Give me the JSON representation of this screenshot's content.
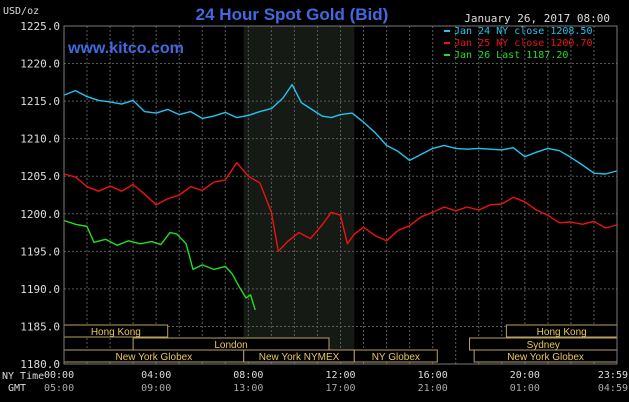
{
  "chart_data": {
    "type": "line",
    "title": "24 Hour Spot Gold (Bid)",
    "website": "www.kitco.com",
    "date": "January 26, 2017 08:00",
    "ylabel": "USD/oz",
    "ylim": [
      1180.0,
      1225.0
    ],
    "yticks": [
      "1225.0",
      "1220.0",
      "1215.0",
      "1210.0",
      "1205.0",
      "1200.0",
      "1195.0",
      "1190.0",
      "1185.0",
      "1180.0"
    ],
    "xlim": [
      0,
      24
    ],
    "xticks": [
      {
        "ny": "00:00",
        "gmt": "05:00",
        "h": 0
      },
      {
        "ny": "04:00",
        "gmt": "09:00",
        "h": 4
      },
      {
        "ny": "08:00",
        "gmt": "13:00",
        "h": 8
      },
      {
        "ny": "12:00",
        "gmt": "17:00",
        "h": 12
      },
      {
        "ny": "16:00",
        "gmt": "21:00",
        "h": 16
      },
      {
        "ny": "20:00",
        "gmt": "01:00",
        "h": 20
      },
      {
        "ny": "23:59",
        "gmt": "04:59",
        "h": 23.98
      }
    ],
    "ny_time_label": "NY Time",
    "gmt_label": "GMT",
    "grid": true,
    "shaded_range": [
      7.8,
      12.6
    ],
    "legend_position": "top-right",
    "series": [
      {
        "name": "Jan 24 NY close 1208.50",
        "color": "#22c4ef",
        "points": [
          [
            0,
            1215.8
          ],
          [
            0.5,
            1216.4
          ],
          [
            1,
            1215.6
          ],
          [
            1.5,
            1215.1
          ],
          [
            2,
            1214.9
          ],
          [
            2.5,
            1214.6
          ],
          [
            3,
            1215.1
          ],
          [
            3.5,
            1213.6
          ],
          [
            4,
            1213.4
          ],
          [
            4.5,
            1213.9
          ],
          [
            5,
            1213.2
          ],
          [
            5.5,
            1213.6
          ],
          [
            6,
            1212.7
          ],
          [
            6.5,
            1213.0
          ],
          [
            7,
            1213.5
          ],
          [
            7.5,
            1212.8
          ],
          [
            8,
            1213.1
          ],
          [
            8.5,
            1213.6
          ],
          [
            9,
            1214.0
          ],
          [
            9.5,
            1215.4
          ],
          [
            9.9,
            1217.2
          ],
          [
            10.3,
            1214.8
          ],
          [
            10.8,
            1213.8
          ],
          [
            11.2,
            1213.0
          ],
          [
            11.6,
            1212.8
          ],
          [
            12,
            1213.2
          ],
          [
            12.5,
            1213.4
          ],
          [
            13,
            1212.2
          ],
          [
            13.5,
            1210.8
          ],
          [
            14,
            1209.1
          ],
          [
            14.5,
            1208.3
          ],
          [
            15,
            1207.1
          ],
          [
            15.5,
            1207.9
          ],
          [
            16,
            1208.7
          ],
          [
            16.5,
            1209.1
          ],
          [
            17,
            1208.7
          ],
          [
            17.5,
            1208.6
          ],
          [
            18,
            1208.7
          ],
          [
            18.5,
            1208.6
          ],
          [
            19,
            1208.5
          ],
          [
            19.5,
            1208.8
          ],
          [
            20,
            1207.6
          ],
          [
            20.5,
            1208.2
          ],
          [
            21,
            1208.7
          ],
          [
            21.5,
            1208.4
          ],
          [
            22,
            1207.5
          ],
          [
            22.5,
            1206.5
          ],
          [
            23,
            1205.4
          ],
          [
            23.5,
            1205.3
          ],
          [
            23.98,
            1205.7
          ]
        ]
      },
      {
        "name": "Jan 25 NY close 1200.70",
        "color": "#ee1111",
        "points": [
          [
            0,
            1205.3
          ],
          [
            0.5,
            1204.9
          ],
          [
            1,
            1203.6
          ],
          [
            1.5,
            1203.0
          ],
          [
            2,
            1203.7
          ],
          [
            2.5,
            1203.0
          ],
          [
            3,
            1203.9
          ],
          [
            3.5,
            1202.6
          ],
          [
            4,
            1201.2
          ],
          [
            4.5,
            1202.0
          ],
          [
            5,
            1202.5
          ],
          [
            5.5,
            1203.6
          ],
          [
            6,
            1203.1
          ],
          [
            6.5,
            1204.2
          ],
          [
            7,
            1204.5
          ],
          [
            7.5,
            1206.8
          ],
          [
            8,
            1205.0
          ],
          [
            8.5,
            1204.1
          ],
          [
            9,
            1200.2
          ],
          [
            9.3,
            1195.0
          ],
          [
            9.7,
            1196.3
          ],
          [
            10.2,
            1197.5
          ],
          [
            10.7,
            1196.7
          ],
          [
            11.2,
            1198.5
          ],
          [
            11.6,
            1200.2
          ],
          [
            12,
            1199.8
          ],
          [
            12.3,
            1196.0
          ],
          [
            12.6,
            1197.3
          ],
          [
            13,
            1198.2
          ],
          [
            13.5,
            1197.1
          ],
          [
            14,
            1196.4
          ],
          [
            14.5,
            1197.8
          ],
          [
            15,
            1198.4
          ],
          [
            15.5,
            1199.6
          ],
          [
            16,
            1200.2
          ],
          [
            16.5,
            1200.9
          ],
          [
            17,
            1200.4
          ],
          [
            17.5,
            1200.9
          ],
          [
            18,
            1200.5
          ],
          [
            18.5,
            1201.2
          ],
          [
            19,
            1201.3
          ],
          [
            19.5,
            1202.2
          ],
          [
            20,
            1201.6
          ],
          [
            20.5,
            1200.5
          ],
          [
            21,
            1199.8
          ],
          [
            21.5,
            1198.8
          ],
          [
            22,
            1198.9
          ],
          [
            22.5,
            1198.6
          ],
          [
            23,
            1199.0
          ],
          [
            23.5,
            1198.1
          ],
          [
            23.98,
            1198.5
          ]
        ]
      },
      {
        "name": "Jan 26 Last 1187.20",
        "color": "#22dd22",
        "points": [
          [
            0,
            1199.1
          ],
          [
            0.5,
            1198.6
          ],
          [
            1,
            1198.3
          ],
          [
            1.3,
            1196.2
          ],
          [
            1.8,
            1196.6
          ],
          [
            2.3,
            1195.8
          ],
          [
            2.8,
            1196.4
          ],
          [
            3.3,
            1196.0
          ],
          [
            3.8,
            1196.3
          ],
          [
            4.2,
            1195.9
          ],
          [
            4.6,
            1197.5
          ],
          [
            4.9,
            1197.3
          ],
          [
            5.3,
            1196.0
          ],
          [
            5.6,
            1192.6
          ],
          [
            6,
            1193.2
          ],
          [
            6.5,
            1192.6
          ],
          [
            7,
            1193.0
          ],
          [
            7.3,
            1192.0
          ],
          [
            7.6,
            1190.3
          ],
          [
            7.9,
            1188.8
          ],
          [
            8.1,
            1189.2
          ],
          [
            8.3,
            1187.2
          ]
        ]
      }
    ],
    "sessions": [
      {
        "label": "Hong Kong",
        "row": 0,
        "start": 0,
        "end": 4.5
      },
      {
        "label": "Hong Kong",
        "row": 0,
        "start": 19.2,
        "end": 24
      },
      {
        "label": "London",
        "row": 1,
        "start": 3,
        "end": 11.5
      },
      {
        "label": "Sydney",
        "row": 1,
        "start": 17.6,
        "end": 24
      },
      {
        "label": "New York Globex",
        "row": 2,
        "start": 0,
        "end": 7.8
      },
      {
        "label": "New York NYMEX",
        "row": 2,
        "start": 7.8,
        "end": 12.6
      },
      {
        "label": "NY Globex",
        "row": 2,
        "start": 12.6,
        "end": 16.2
      },
      {
        "label": "New York Globex",
        "row": 2,
        "start": 17.8,
        "end": 24
      }
    ]
  }
}
